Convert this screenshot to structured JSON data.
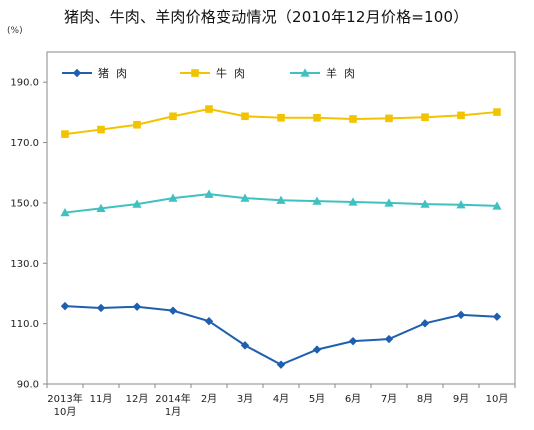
{
  "chart_data": {
    "type": "line",
    "title": "猪肉、牛肉、羊肉价格变动情况（2010年12月价格=100）",
    "unit": "(%)",
    "categories": [
      [
        "2013年",
        "10月"
      ],
      [
        "11月"
      ],
      [
        "12月"
      ],
      [
        "2014年",
        "1月"
      ],
      [
        "2月"
      ],
      [
        "3月"
      ],
      [
        "4月"
      ],
      [
        "5月"
      ],
      [
        "6月"
      ],
      [
        "7月"
      ],
      [
        "8月"
      ],
      [
        "9月"
      ],
      [
        "10月"
      ]
    ],
    "ylim": [
      90,
      200
    ],
    "yticks": [
      "90.0",
      "110.0",
      "130.0",
      "150.0",
      "170.0",
      "190.0"
    ],
    "grid": false,
    "legend_position": "top-left",
    "series": [
      {
        "name": "猪  肉",
        "marker": "diamond",
        "color": "#1f5fb0",
        "values": [
          115.8,
          115.2,
          115.6,
          114.3,
          110.8,
          102.8,
          96.4,
          101.4,
          104.2,
          104.9,
          110.1,
          112.9,
          112.3
        ]
      },
      {
        "name": "牛  肉",
        "marker": "square",
        "color": "#f2c300",
        "values": [
          172.8,
          174.3,
          175.9,
          178.7,
          181.1,
          178.7,
          178.2,
          178.2,
          177.8,
          178.0,
          178.4,
          179.0,
          180.1
        ]
      },
      {
        "name": "羊  肉",
        "marker": "triangle",
        "color": "#3fc1c1",
        "values": [
          146.8,
          148.2,
          149.6,
          151.6,
          152.9,
          151.6,
          150.9,
          150.6,
          150.3,
          150.0,
          149.6,
          149.4,
          149.0
        ]
      }
    ]
  }
}
